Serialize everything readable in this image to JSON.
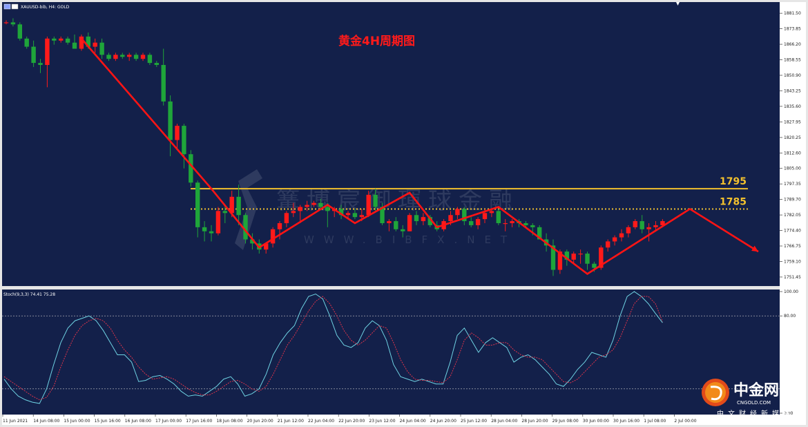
{
  "header": {
    "symbol_info": "XAUUSD-bib, H4:  GOLD",
    "chart_title": "黄金4H周期图",
    "watermark_cn": "篝博宸御琿球金融",
    "watermark_en": "WWW.BIBFX.NET"
  },
  "indicator": {
    "label": "Stoch(9,3,3) 74.41 75.28",
    "k_value": 74.41,
    "d_value": 75.28
  },
  "logo": {
    "name": "中金网",
    "domain": "CNGOLD.COM",
    "slogan": "中文财经新媒体"
  },
  "colors": {
    "background": "#13204a",
    "bull": "#ff1a1a",
    "bear": "#1fa53a",
    "level": "#f2c12e",
    "trend": "#ff1414",
    "stoch_main": "#6fd3e3",
    "stoch_signal": "#e0344a"
  },
  "chart_data": [
    {
      "type": "candlestick",
      "title": "黄金4H周期图",
      "ylim": [
        1747,
        1887
      ],
      "y_ticks": [
        "1881.50",
        "1873.85",
        "1866.20",
        "1858.55",
        "1850.90",
        "1843.25",
        "1835.60",
        "1827.95",
        "1820.25",
        "1812.60",
        "1805.00",
        "1797.35",
        "1789.70",
        "1782.05",
        "1774.40",
        "1766.75",
        "1759.10",
        "1751.45"
      ],
      "x_ticks": [
        "11 Jun 2021",
        "14 Jun 08:00",
        "15 Jun 00:00",
        "15 Jun 16:00",
        "16 Jun 08:00",
        "17 Jun 00:00",
        "17 Jun 16:00",
        "18 Jun 08:00",
        "20 Jun 20:00",
        "21 Jun 12:00",
        "22 Jun 04:00",
        "22 Jun 20:00",
        "23 Jun 12:00",
        "24 Jun 04:00",
        "24 Jun 20:00",
        "25 Jun 12:00",
        "28 Jun 04:00",
        "28 Jun 20:00",
        "29 Jun 08:00",
        "30 Jun 00:00",
        "30 Jun 16:00",
        "1 Jul 08:00",
        "2 Jul 00:00"
      ],
      "candles": [
        [
          1877,
          1878,
          1876,
          1877
        ],
        [
          1877,
          1879,
          1875,
          1876
        ],
        [
          1876,
          1877,
          1868,
          1869
        ],
        [
          1869,
          1870,
          1864,
          1865
        ],
        [
          1865,
          1868,
          1855,
          1857
        ],
        [
          1857,
          1859,
          1852,
          1856
        ],
        [
          1856,
          1870,
          1845,
          1869
        ],
        [
          1869,
          1870,
          1866,
          1868
        ],
        [
          1868,
          1870,
          1867,
          1869
        ],
        [
          1869,
          1870,
          1866,
          1867
        ],
        [
          1867,
          1871,
          1865,
          1864
        ],
        [
          1864,
          1871,
          1863,
          1870
        ],
        [
          1870,
          1872,
          1864,
          1865
        ],
        [
          1865,
          1869,
          1862,
          1867
        ],
        [
          1867,
          1869,
          1859,
          1861
        ],
        [
          1861,
          1862,
          1858,
          1859
        ],
        [
          1859,
          1862,
          1858,
          1861
        ],
        [
          1861,
          1862,
          1859,
          1860
        ],
        [
          1860,
          1862,
          1858,
          1861
        ],
        [
          1861,
          1862,
          1858,
          1859
        ],
        [
          1859,
          1862,
          1858,
          1861
        ],
        [
          1861,
          1862,
          1856,
          1857
        ],
        [
          1857,
          1858,
          1855,
          1856
        ],
        [
          1856,
          1864,
          1836,
          1838
        ],
        [
          1838,
          1841,
          1811,
          1819
        ],
        [
          1819,
          1827,
          1815,
          1826
        ],
        [
          1826,
          1827,
          1805,
          1812
        ],
        [
          1812,
          1814,
          1796,
          1798
        ],
        [
          1798,
          1799,
          1771,
          1776
        ],
        [
          1776,
          1779,
          1769,
          1774
        ],
        [
          1774,
          1777,
          1769,
          1773
        ],
        [
          1773,
          1786,
          1772,
          1784
        ],
        [
          1784,
          1787,
          1778,
          1783
        ],
        [
          1783,
          1794,
          1781,
          1791
        ],
        [
          1791,
          1797,
          1777,
          1782
        ],
        [
          1782,
          1783,
          1768,
          1770
        ],
        [
          1770,
          1773,
          1765,
          1768
        ],
        [
          1768,
          1770,
          1763,
          1765
        ],
        [
          1765,
          1768,
          1763,
          1768
        ],
        [
          1768,
          1776,
          1766,
          1775
        ],
        [
          1775,
          1779,
          1770,
          1778
        ],
        [
          1778,
          1784,
          1776,
          1783
        ],
        [
          1783,
          1788,
          1781,
          1784
        ],
        [
          1784,
          1787,
          1778,
          1786
        ],
        [
          1786,
          1789,
          1784,
          1787
        ],
        [
          1787,
          1789,
          1786,
          1788
        ],
        [
          1788,
          1790,
          1785,
          1786
        ],
        [
          1786,
          1788,
          1776,
          1784
        ],
        [
          1784,
          1786,
          1781,
          1785
        ],
        [
          1785,
          1787,
          1780,
          1782
        ],
        [
          1782,
          1784,
          1780,
          1783
        ],
        [
          1783,
          1785,
          1780,
          1781
        ],
        [
          1781,
          1785,
          1779,
          1782
        ],
        [
          1782,
          1794,
          1781,
          1792
        ],
        [
          1792,
          1795,
          1784,
          1786
        ],
        [
          1786,
          1788,
          1777,
          1778
        ],
        [
          1778,
          1780,
          1774,
          1779
        ],
        [
          1779,
          1781,
          1774,
          1775
        ],
        [
          1775,
          1777,
          1771,
          1774
        ],
        [
          1774,
          1783,
          1774,
          1782
        ],
        [
          1782,
          1784,
          1777,
          1779
        ],
        [
          1779,
          1783,
          1777,
          1781
        ],
        [
          1781,
          1782,
          1776,
          1777
        ],
        [
          1777,
          1779,
          1774,
          1775
        ],
        [
          1775,
          1780,
          1774,
          1779
        ],
        [
          1779,
          1784,
          1777,
          1782
        ],
        [
          1782,
          1786,
          1780,
          1785
        ],
        [
          1785,
          1786,
          1777,
          1779
        ],
        [
          1779,
          1781,
          1776,
          1777
        ],
        [
          1777,
          1781,
          1775,
          1780
        ],
        [
          1780,
          1785,
          1778,
          1783
        ],
        [
          1783,
          1785,
          1781,
          1784
        ],
        [
          1784,
          1785,
          1777,
          1778
        ],
        [
          1778,
          1780,
          1774,
          1778
        ],
        [
          1778,
          1780,
          1776,
          1779
        ],
        [
          1779,
          1780,
          1776,
          1778
        ],
        [
          1778,
          1779,
          1776,
          1777
        ],
        [
          1777,
          1778,
          1772,
          1776
        ],
        [
          1776,
          1777,
          1771,
          1770
        ],
        [
          1770,
          1773,
          1764,
          1767
        ],
        [
          1767,
          1770,
          1752,
          1755
        ],
        [
          1755,
          1765,
          1753,
          1764
        ],
        [
          1764,
          1765,
          1757,
          1760
        ],
        [
          1760,
          1764,
          1758,
          1763
        ],
        [
          1763,
          1765,
          1758,
          1763
        ],
        [
          1763,
          1764,
          1755,
          1758
        ],
        [
          1758,
          1759,
          1754,
          1756
        ],
        [
          1756,
          1767,
          1755,
          1766
        ],
        [
          1766,
          1770,
          1764,
          1769
        ],
        [
          1769,
          1772,
          1767,
          1771
        ],
        [
          1771,
          1775,
          1769,
          1773
        ],
        [
          1773,
          1777,
          1771,
          1776
        ],
        [
          1776,
          1780,
          1775,
          1779
        ],
        [
          1779,
          1782,
          1773,
          1775
        ],
        [
          1775,
          1778,
          1769,
          1776
        ],
        [
          1776,
          1779,
          1774,
          1777
        ],
        [
          1777,
          1780,
          1776,
          1779
        ]
      ],
      "levels": [
        {
          "label": "1795",
          "value": 1795,
          "style": "solid"
        },
        {
          "label": "1785",
          "value": 1785,
          "style": "dotted"
        }
      ],
      "trend_path": [
        [
          11,
          1869
        ],
        [
          30,
          1795
        ],
        [
          37,
          1766
        ],
        [
          47,
          1787
        ],
        [
          51,
          1778
        ],
        [
          59,
          1793
        ],
        [
          63,
          1776
        ],
        [
          72,
          1786
        ],
        [
          85,
          1753
        ],
        [
          100,
          1785
        ],
        [
          110,
          1764
        ]
      ]
    },
    {
      "type": "line",
      "title": "Stoch(9,3,3)",
      "ylim": [
        0,
        100
      ],
      "y_ticks": [
        "100.00",
        "80.00",
        "0.00"
      ],
      "levels": [
        80,
        20
      ],
      "series": [
        {
          "name": "main",
          "values": [
            28,
            20,
            14,
            11,
            9,
            8,
            20,
            40,
            58,
            70,
            76,
            78,
            80,
            76,
            68,
            58,
            48,
            48,
            42,
            26,
            27,
            30,
            31,
            28,
            24,
            18,
            14,
            15,
            14,
            18,
            22,
            28,
            30,
            24,
            14,
            16,
            20,
            32,
            48,
            58,
            66,
            72,
            86,
            96,
            98,
            94,
            80,
            64,
            56,
            54,
            58,
            70,
            76,
            72,
            60,
            40,
            30,
            28,
            26,
            28,
            26,
            24,
            24,
            42,
            64,
            70,
            60,
            50,
            58,
            62,
            58,
            54,
            42,
            46,
            48,
            44,
            38,
            32,
            24,
            22,
            28,
            36,
            42,
            50,
            48,
            46,
            60,
            80,
            96,
            100,
            96,
            90,
            82,
            74.41
          ]
        },
        {
          "name": "signal",
          "values": [
            30,
            26,
            22,
            18,
            14,
            11,
            13,
            22,
            38,
            52,
            64,
            72,
            76,
            78,
            76,
            70,
            60,
            52,
            46,
            38,
            32,
            28,
            29,
            30,
            28,
            24,
            20,
            17,
            15,
            15,
            18,
            22,
            26,
            27,
            24,
            20,
            18,
            22,
            32,
            44,
            56,
            64,
            74,
            84,
            92,
            96,
            90,
            80,
            68,
            60,
            56,
            60,
            66,
            72,
            70,
            58,
            44,
            34,
            28,
            27,
            27,
            26,
            25,
            30,
            44,
            60,
            66,
            62,
            56,
            56,
            58,
            58,
            52,
            48,
            46,
            46,
            44,
            38,
            32,
            26,
            25,
            28,
            34,
            40,
            46,
            48,
            52,
            62,
            76,
            90,
            96,
            96,
            90,
            75.28
          ]
        }
      ]
    }
  ]
}
